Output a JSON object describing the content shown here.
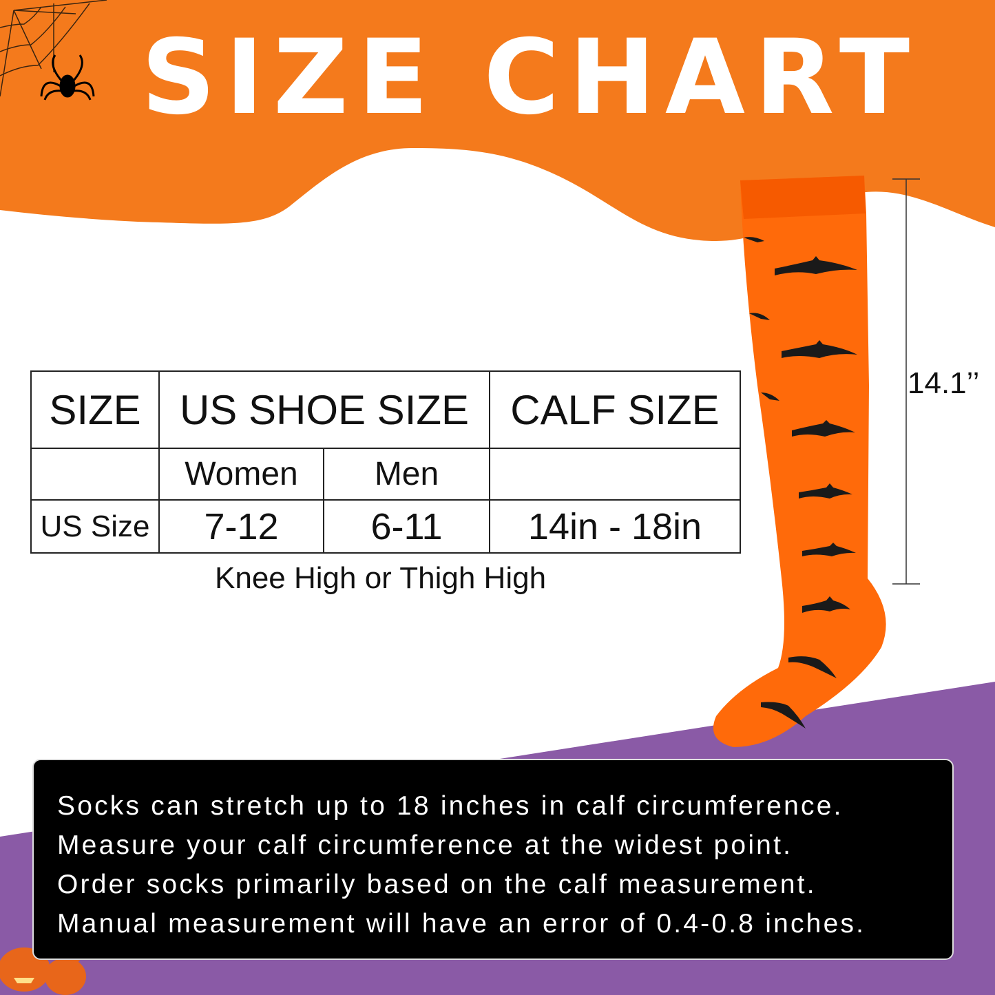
{
  "title": "SIZE CHART",
  "colors": {
    "header_orange": "#f47a1c",
    "sock_orange": "#ff6a0a",
    "purple": "#8a5aa6",
    "note_bg": "#000000"
  },
  "table": {
    "headers": [
      "SIZE",
      "US SHOE SIZE",
      "CALF SIZE"
    ],
    "subheaders": [
      "",
      "Women",
      "Men",
      ""
    ],
    "rows": [
      [
        "US Size",
        "7-12",
        "6-11",
        "14in - 18in"
      ]
    ]
  },
  "caption": "Knee High or Thigh High",
  "sock_length": "14.1’’",
  "notes": [
    "Socks can stretch up to 18 inches in calf circumference.",
    "Measure your calf circumference at the widest point.",
    "Order socks primarily based on the calf measurement.",
    "Manual measurement will have an error of 0.4-0.8 inches."
  ],
  "icons": [
    "spider-web-icon",
    "spider-icon",
    "bat-icon",
    "pumpkin-icon"
  ]
}
